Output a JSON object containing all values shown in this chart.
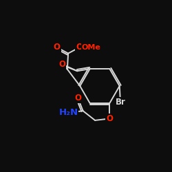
{
  "bg_color": "#0d0d0d",
  "bond_color": "#d8d8d8",
  "atom_colors": {
    "O": "#ff2200",
    "N": "#2244ff",
    "Br": "#d8d8d8",
    "C": "#d8d8d8"
  },
  "bond_width": 1.4,
  "font_size": 8.5,
  "fig_size": [
    2.5,
    2.5
  ],
  "dpi": 100
}
